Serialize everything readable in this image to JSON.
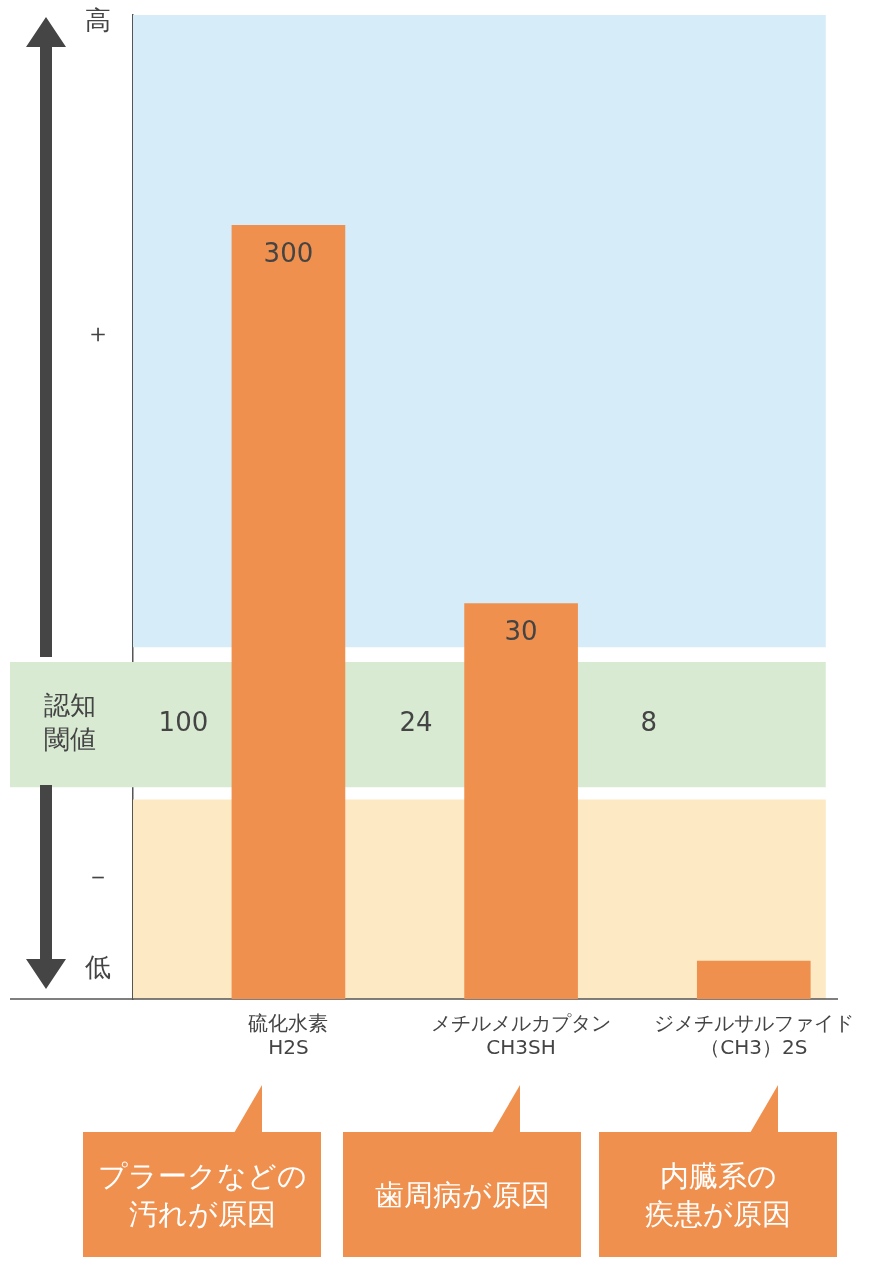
{
  "chart_data": {
    "type": "bar",
    "log": true,
    "ylim": [
      2.7,
      1080
    ],
    "categories": [
      "硫化水素H2S",
      "メチルメルカプタンCH3SH",
      "ジメチルサルファイド（CH3）2S"
    ],
    "values": [
      300,
      30,
      3.4
    ],
    "color": "#f0904e",
    "value_labels": [
      "300",
      "30",
      null
    ],
    "bands": [
      {
        "axis": "y",
        "from": 23,
        "to": 1080,
        "color": "#d6ecf8"
      },
      {
        "axis": "y",
        "from": 9.8,
        "to": 21,
        "color": "#d9ead3",
        "label": "認知閾値"
      },
      {
        "axis": "y",
        "from": 2.7,
        "to": 9.1,
        "color": "#fde9c3"
      }
    ],
    "annotations": [
      "高",
      "＋",
      "－",
      "低",
      "100",
      "24",
      "8",
      "プラークなどの汚れが原因",
      "歯周病が原因",
      "内臓系の疾患が原因"
    ],
    "grid": false,
    "legend": false
  }
}
